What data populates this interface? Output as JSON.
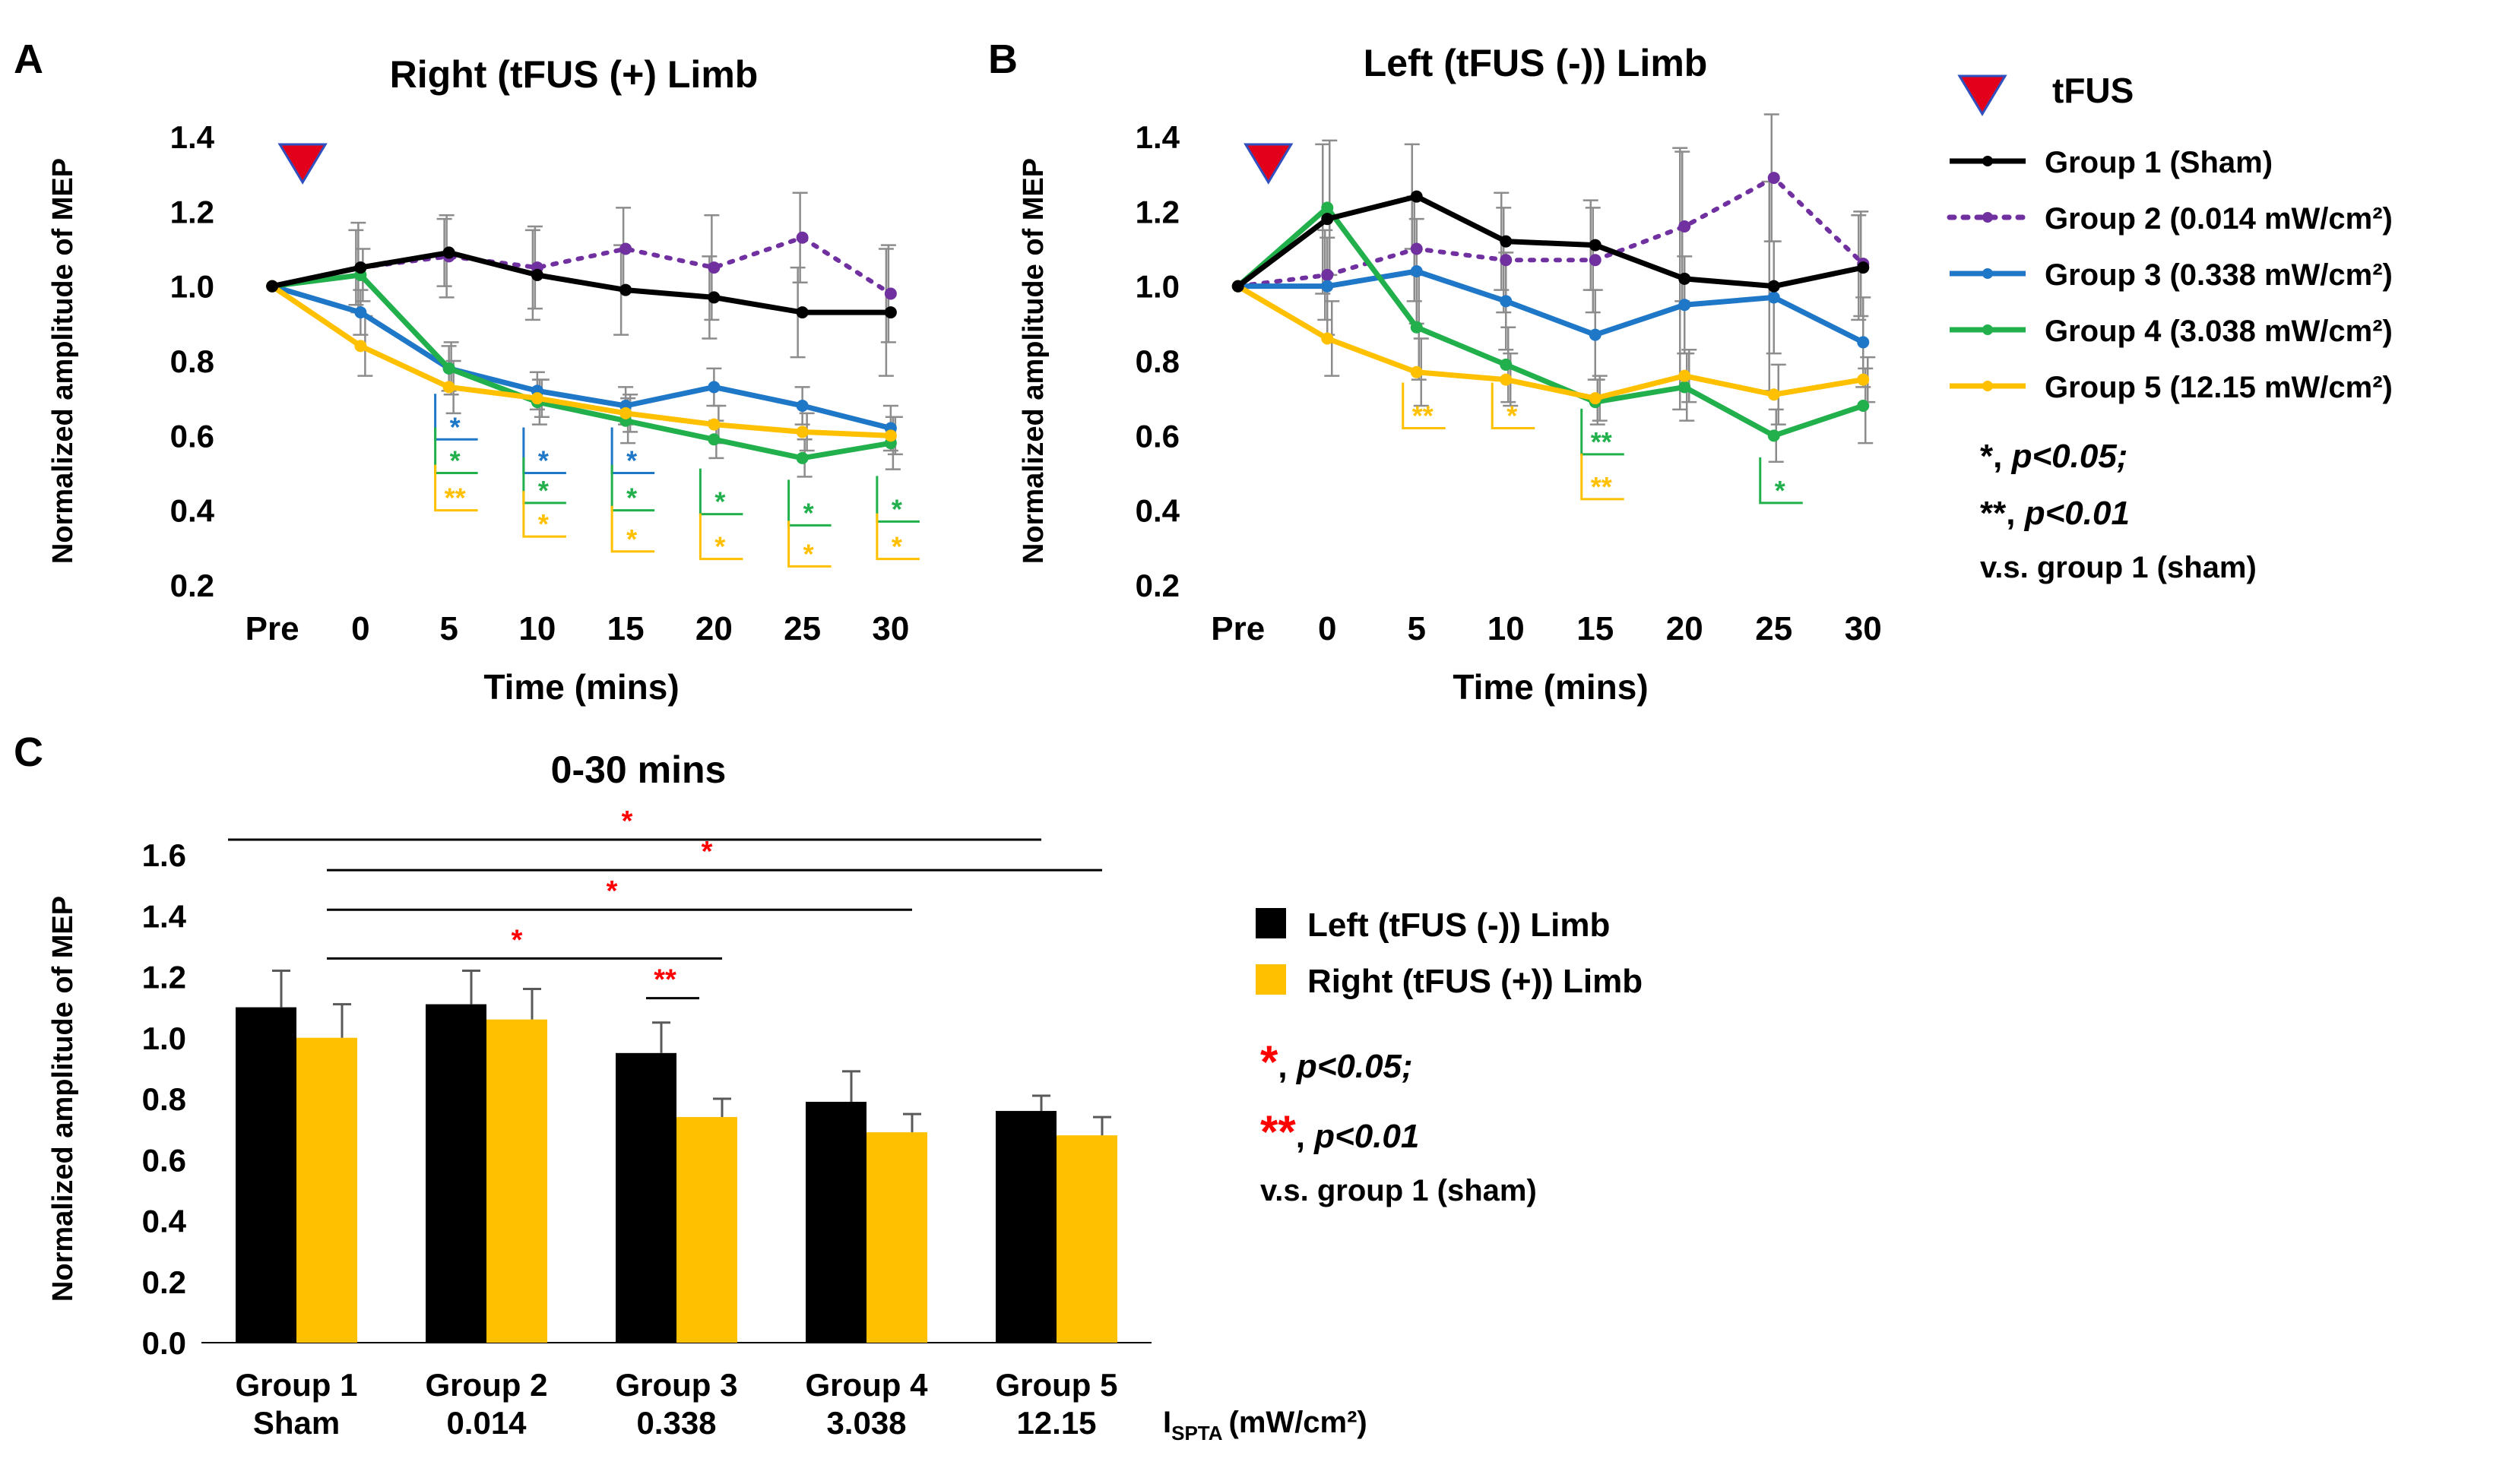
{
  "figure": {
    "panels": {
      "a": "A",
      "b": "B",
      "c": "C"
    },
    "tfus_label": "tFUS",
    "legend_groups": [
      "Group 1 (Sham)",
      "Group 2 (0.014 mW/cm²)",
      "Group 3 (0.338 mW/cm²)",
      "Group 4 (3.038 mW/cm²)",
      "Group 5 (12.15 mW/cm²)"
    ],
    "sig_legend_top": {
      "star": "*",
      "p05": "p<0.05;",
      "dstar": "**",
      "p01": "p<0.01",
      "vs": "v.s. group 1 (sham)"
    },
    "sig_legend_bottom": {
      "star": "*",
      "p05": "p<0.05;",
      "dstar": "**",
      "p01": "p<0.01",
      "vs": "v.s. group 1 (sham)"
    },
    "bar_legend": [
      "Left (tFUS (-)) Limb",
      "Right (tFUS (+)) Limb"
    ],
    "ispta_label": {
      "i": "I",
      "sub": "SPTA",
      "unit": "(mW/cm²)"
    }
  },
  "colors": {
    "group1": "#000000",
    "group2": "#7030a0",
    "group3": "#1f77c8",
    "group4": "#21b04b",
    "group5": "#ffc000",
    "tfus": "#e3001b",
    "tfus_edge": "#3050c0",
    "sig_red": "#ff0000"
  },
  "chart_data": [
    {
      "panel": "A",
      "type": "line",
      "title": "Right (tFUS (+) Limb",
      "xlabel": "Time (mins)",
      "ylabel": "Normalized amplitude of MEP",
      "categories": [
        "Pre",
        "0",
        "5",
        "10",
        "15",
        "20",
        "25",
        "30"
      ],
      "ylim": [
        0.2,
        1.4
      ],
      "yticks": [
        "0.2",
        "0.4",
        "0.6",
        "0.8",
        "1.0",
        "1.2",
        "1.4"
      ],
      "series": [
        {
          "name": "Group 1 (Sham)",
          "values": [
            1.0,
            1.05,
            1.09,
            1.03,
            0.99,
            0.97,
            0.93,
            0.93
          ],
          "error": [
            0,
            0.1,
            0.09,
            0.12,
            0.12,
            0.11,
            0.12,
            0.17
          ]
        },
        {
          "name": "Group 2 (0.014 mW/cm²)",
          "values": [
            1.0,
            1.05,
            1.08,
            1.05,
            1.1,
            1.05,
            1.13,
            0.98
          ],
          "error": [
            0,
            0.12,
            0.11,
            0.11,
            0.11,
            0.14,
            0.12,
            0.13
          ]
        },
        {
          "name": "Group 3 (0.338 mW/cm²)",
          "values": [
            1.0,
            0.93,
            0.78,
            0.72,
            0.68,
            0.73,
            0.68,
            0.62
          ],
          "error": [
            0,
            0.06,
            0.06,
            0.05,
            0.05,
            0.05,
            0.05,
            0.06
          ]
        },
        {
          "name": "Group 4 (3.038 mW/cm²)",
          "values": [
            1.0,
            1.03,
            0.78,
            0.69,
            0.64,
            0.59,
            0.54,
            0.58
          ],
          "error": [
            0,
            0.07,
            0.07,
            0.06,
            0.06,
            0.05,
            0.05,
            0.07
          ]
        },
        {
          "name": "Group 5 (12.15 mW/cm²)",
          "values": [
            1.0,
            0.84,
            0.73,
            0.7,
            0.66,
            0.63,
            0.61,
            0.6
          ],
          "error": [
            0,
            0.08,
            0.07,
            0.05,
            0.05,
            0.05,
            0.05,
            0.05
          ]
        }
      ],
      "significance": [
        {
          "group": 3,
          "x": 2,
          "level": 0.59,
          "label": "*"
        },
        {
          "group": 4,
          "x": 2,
          "level": 0.5,
          "label": "*"
        },
        {
          "group": 5,
          "x": 2,
          "level": 0.4,
          "label": "**"
        },
        {
          "group": 3,
          "x": 3,
          "level": 0.5,
          "label": "*"
        },
        {
          "group": 4,
          "x": 3,
          "level": 0.42,
          "label": "*"
        },
        {
          "group": 5,
          "x": 3,
          "level": 0.33,
          "label": "*"
        },
        {
          "group": 3,
          "x": 4,
          "level": 0.5,
          "label": "*"
        },
        {
          "group": 4,
          "x": 4,
          "level": 0.4,
          "label": "*"
        },
        {
          "group": 5,
          "x": 4,
          "level": 0.29,
          "label": "*"
        },
        {
          "group": 4,
          "x": 5,
          "level": 0.39,
          "label": "*"
        },
        {
          "group": 5,
          "x": 5,
          "level": 0.27,
          "label": "*"
        },
        {
          "group": 4,
          "x": 6,
          "level": 0.36,
          "label": "*"
        },
        {
          "group": 5,
          "x": 6,
          "level": 0.25,
          "label": "*"
        },
        {
          "group": 4,
          "x": 7,
          "level": 0.37,
          "label": "*"
        },
        {
          "group": 5,
          "x": 7,
          "level": 0.27,
          "label": "*"
        }
      ]
    },
    {
      "panel": "B",
      "type": "line",
      "title": "Left (tFUS (-)) Limb",
      "xlabel": "Time (mins)",
      "ylabel": "Normalized amplitude of MEP",
      "categories": [
        "Pre",
        "0",
        "5",
        "10",
        "15",
        "20",
        "25",
        "30"
      ],
      "ylim": [
        0.2,
        1.4
      ],
      "yticks": [
        "0.2",
        "0.4",
        "0.6",
        "0.8",
        "1.0",
        "1.2",
        "1.4"
      ],
      "series": [
        {
          "name": "Group 1 (Sham)",
          "values": [
            1.0,
            1.18,
            1.24,
            1.12,
            1.11,
            1.02,
            1.0,
            1.05
          ],
          "error": [
            0,
            0.2,
            0.14,
            0.13,
            0.12,
            0.35,
            0.28,
            0.14
          ]
        },
        {
          "name": "Group 2 (0.014 mW/cm²)",
          "values": [
            1.0,
            1.03,
            1.1,
            1.07,
            1.07,
            1.16,
            1.29,
            1.06
          ],
          "error": [
            0,
            0.12,
            0.14,
            0.14,
            0.14,
            0.2,
            0.17,
            0.14
          ]
        },
        {
          "name": "Group 3 (0.338 mW/cm²)",
          "values": [
            1.0,
            1.0,
            1.04,
            0.96,
            0.87,
            0.95,
            0.97,
            0.85
          ],
          "error": [
            0,
            0.13,
            0.14,
            0.13,
            0.12,
            0.13,
            0.15,
            0.12
          ]
        },
        {
          "name": "Group 4 (3.038 mW/cm²)",
          "values": [
            1.0,
            1.21,
            0.89,
            0.79,
            0.69,
            0.73,
            0.6,
            0.68
          ],
          "error": [
            0,
            0.18,
            0.14,
            0.1,
            0.06,
            0.09,
            0.07,
            0.1
          ]
        },
        {
          "name": "Group 5 (12.15 mW/cm²)",
          "values": [
            1.0,
            0.86,
            0.77,
            0.75,
            0.7,
            0.76,
            0.71,
            0.75
          ],
          "error": [
            0,
            0.1,
            0.09,
            0.07,
            0.06,
            0.07,
            0.08,
            0.06
          ]
        }
      ],
      "significance": [
        {
          "group": 5,
          "x": 2,
          "level": 0.62,
          "label": "**"
        },
        {
          "group": 5,
          "x": 3,
          "level": 0.62,
          "label": "*"
        },
        {
          "group": 4,
          "x": 4,
          "level": 0.55,
          "label": "**"
        },
        {
          "group": 5,
          "x": 4,
          "level": 0.43,
          "label": "**"
        },
        {
          "group": 4,
          "x": 6,
          "level": 0.42,
          "label": "*"
        }
      ]
    },
    {
      "panel": "C",
      "type": "bar",
      "title": "0-30 mins",
      "ylabel": "Normalized amplitude of MEP",
      "categories": [
        [
          "Group 1",
          "Sham"
        ],
        [
          "Group 2",
          "0.014"
        ],
        [
          "Group 3",
          "0.338"
        ],
        [
          "Group 4",
          "3.038"
        ],
        [
          "Group 5",
          "12.15"
        ]
      ],
      "ylim": [
        0.0,
        1.6
      ],
      "yticks": [
        "0.0",
        "0.2",
        "0.4",
        "0.6",
        "0.8",
        "1.0",
        "1.2",
        "1.4",
        "1.6"
      ],
      "series": [
        {
          "name": "Left (tFUS (-)) Limb",
          "values": [
            1.1,
            1.11,
            0.95,
            0.79,
            0.76
          ],
          "error": [
            0.12,
            0.11,
            0.1,
            0.1,
            0.05
          ]
        },
        {
          "name": "Right (tFUS (+)) Limb",
          "values": [
            1.0,
            1.06,
            0.74,
            0.69,
            0.68
          ],
          "error": [
            0.11,
            0.1,
            0.06,
            0.06,
            0.06
          ]
        }
      ],
      "significance": [
        {
          "from": [
            0,
            0
          ],
          "to": [
            4,
            0
          ],
          "level": 1.65,
          "label": "*"
        },
        {
          "from": [
            0,
            1
          ],
          "to": [
            4,
            1
          ],
          "level": 1.55,
          "label": "*"
        },
        {
          "from": [
            0,
            1
          ],
          "to": [
            3,
            1
          ],
          "level": 1.42,
          "label": "*"
        },
        {
          "from": [
            0,
            1
          ],
          "to": [
            2,
            1
          ],
          "level": 1.26,
          "label": "*"
        },
        {
          "from": [
            2,
            0
          ],
          "to": [
            2,
            1
          ],
          "level": 1.13,
          "label": "**"
        }
      ]
    }
  ]
}
